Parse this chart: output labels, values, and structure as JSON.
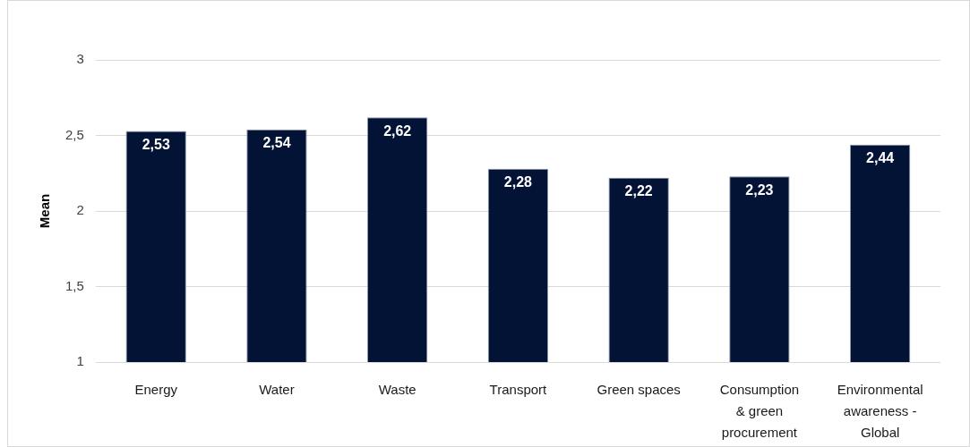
{
  "chart_data": {
    "type": "bar",
    "ylabel": "Mean",
    "categories": [
      "Energy",
      "Water",
      "Waste",
      "Transport",
      "Green spaces",
      "Consumption & green procurement",
      "Environmental awareness - Global"
    ],
    "values": [
      2.53,
      2.54,
      2.62,
      2.28,
      2.22,
      2.23,
      2.44
    ],
    "value_labels": [
      "2,53",
      "2,54",
      "2,62",
      "2,28",
      "2,22",
      "2,23",
      "2,44"
    ],
    "color": "#021336",
    "ylim": [
      1,
      3
    ],
    "yticks": [
      1,
      {
        "value": 1.5,
        "label": "1,5"
      },
      2,
      {
        "value": 2.5,
        "label": "2,5"
      },
      3
    ],
    "grid": "y"
  }
}
